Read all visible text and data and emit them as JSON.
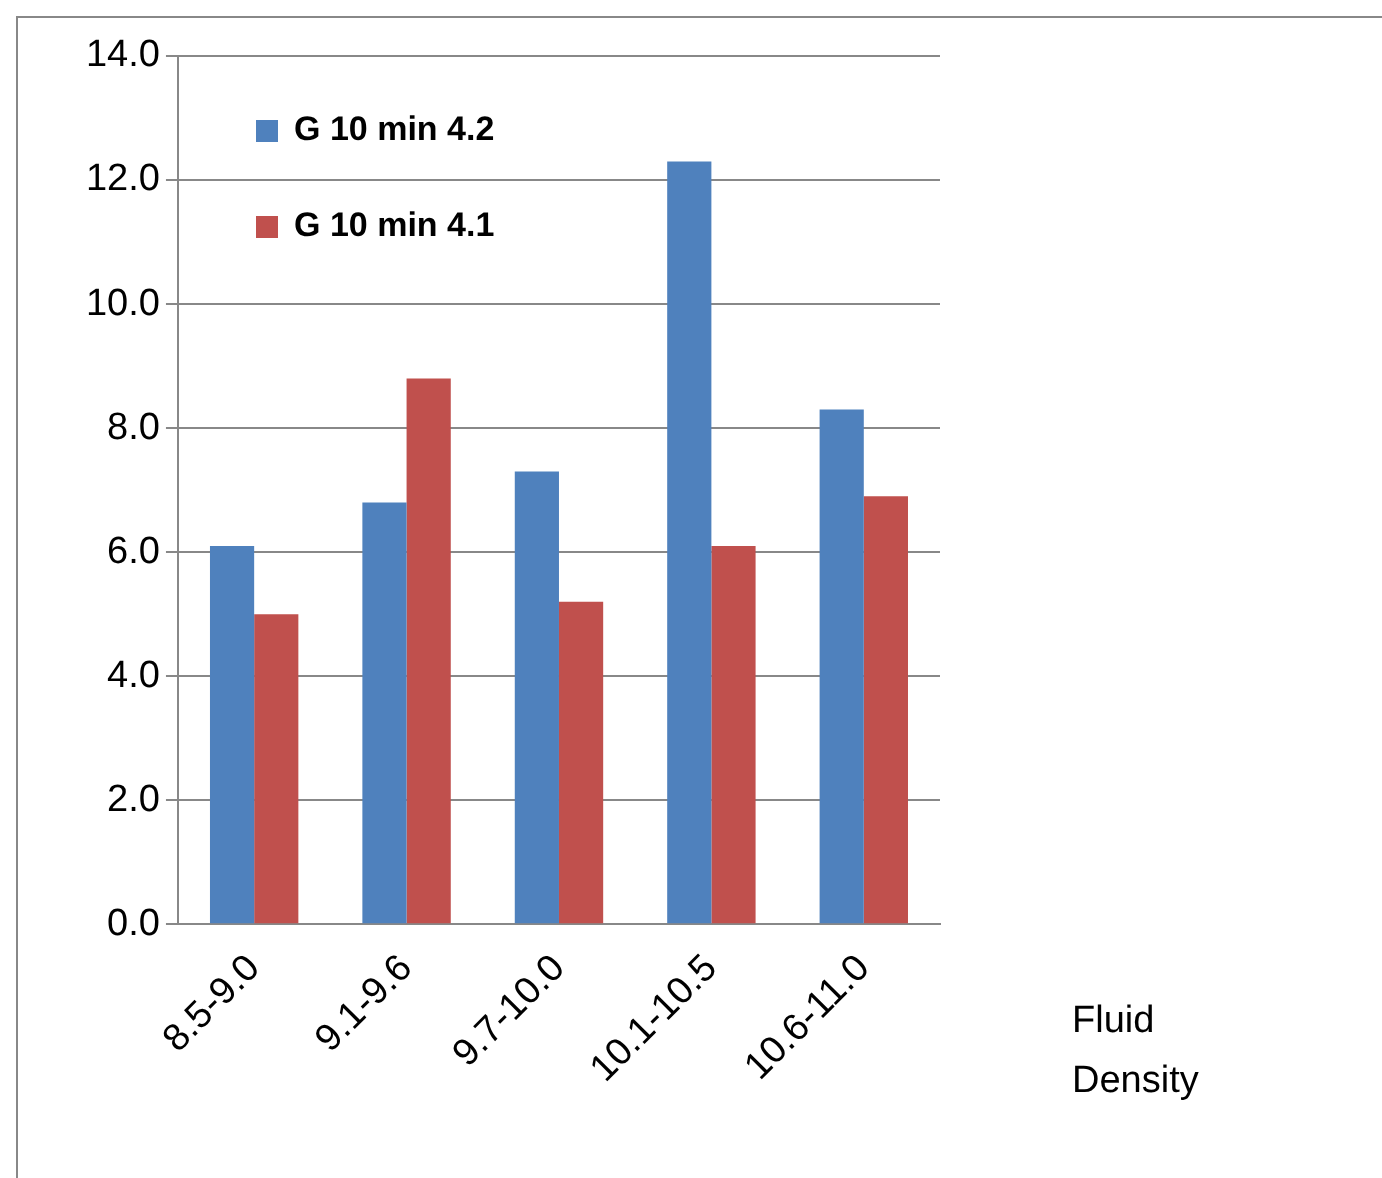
{
  "chart_data": {
    "type": "bar",
    "xlabel": "Fluid Density",
    "categories": [
      "8.5-9.0",
      "9.1-9.6",
      "9.7-10.0",
      "10.1-10.5",
      "10.6-11.0"
    ],
    "series": [
      {
        "name": "G 10 min 4.2",
        "color": "#4f81bd",
        "values": [
          6.1,
          6.8,
          7.3,
          12.3,
          8.3
        ]
      },
      {
        "name": "G 10 min 4.1",
        "color": "#c0504d",
        "values": [
          5.0,
          8.8,
          5.2,
          6.1,
          6.9
        ]
      }
    ],
    "ylim": [
      0,
      14
    ],
    "yticks": [
      {
        "value": 0,
        "label": "0.0"
      },
      {
        "value": 2,
        "label": "2.0"
      },
      {
        "value": 4,
        "label": "4.0"
      },
      {
        "value": 6,
        "label": "6.0"
      },
      {
        "value": 8,
        "label": "8.0"
      },
      {
        "value": 10,
        "label": "10.0"
      },
      {
        "value": 12,
        "label": "12.0"
      },
      {
        "value": 14,
        "label": "14.0"
      }
    ],
    "grid": "y",
    "legend": "top left"
  }
}
